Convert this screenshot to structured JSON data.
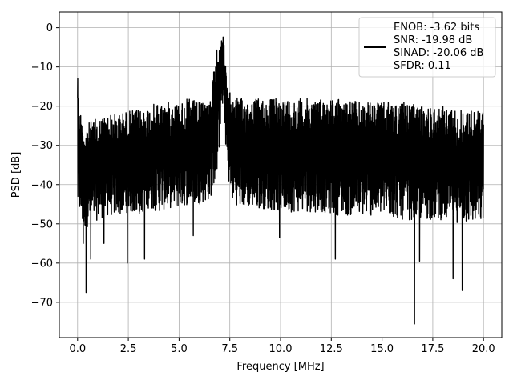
{
  "chart_data": {
    "type": "line",
    "title": "",
    "xlabel": "Frequency [MHz]",
    "ylabel": "PSD [dB]",
    "xlim": [
      -0.9,
      20.9
    ],
    "ylim": [
      -79,
      4
    ],
    "xticks": [
      0.0,
      2.5,
      5.0,
      7.5,
      10.0,
      12.5,
      15.0,
      17.5,
      20.0
    ],
    "xtick_labels": [
      "0.0",
      "2.5",
      "5.0",
      "7.5",
      "10.0",
      "12.5",
      "15.0",
      "17.5",
      "20.0"
    ],
    "yticks": [
      0,
      -10,
      -20,
      -30,
      -40,
      -50,
      -60,
      -70
    ],
    "ytick_labels": [
      "0",
      "−10",
      "−20",
      "−30",
      "−40",
      "−50",
      "−60",
      "−70"
    ],
    "grid": true,
    "legend_position": "top-right",
    "line_color": "#000000",
    "grid_color": "#b0b0b0",
    "series": [
      {
        "name": "ENOB: -3.62 bits\nSNR: -19.98 dB\nSINAD: -20.06 dB\nSFDR: 0.11",
        "legend_lines": [
          "ENOB: -3.62 bits",
          "SNR: -19.98 dB",
          "SINAD: -20.06 dB",
          "SFDR: 0.11"
        ],
        "envelope": {
          "x": [
            0.0,
            0.1,
            0.3,
            0.6,
            1.0,
            1.5,
            2.0,
            2.5,
            3.0,
            3.5,
            4.0,
            4.5,
            5.0,
            5.5,
            6.0,
            6.5,
            6.8,
            7.0,
            7.1,
            7.2,
            7.4,
            7.6,
            8.0,
            9.0,
            10.0,
            11.0,
            12.0,
            13.0,
            14.0,
            15.0,
            16.0,
            17.0,
            18.0,
            19.0,
            20.0
          ],
          "upper": [
            -13,
            -20,
            -25,
            -24,
            -23,
            -22,
            -22,
            -21,
            -21,
            -20,
            -19,
            -19,
            -19,
            -18,
            -19,
            -18,
            -8,
            0,
            0,
            -3,
            -16,
            -17,
            -18,
            -18,
            -18,
            -18,
            -18,
            -18,
            -19,
            -19,
            -19,
            -20,
            -20,
            -21,
            -21
          ],
          "lower": [
            -45,
            -48,
            -52,
            -50,
            -49,
            -48,
            -48,
            -47,
            -48,
            -46,
            -47,
            -46,
            -46,
            -45,
            -45,
            -44,
            -40,
            -30,
            -20,
            -22,
            -38,
            -44,
            -46,
            -46,
            -47,
            -47,
            -47,
            -48,
            -48,
            -48,
            -49,
            -49,
            -49,
            -50,
            -50
          ]
        },
        "deep_dips": [
          {
            "x": 0.28,
            "y": -55
          },
          {
            "x": 0.42,
            "y": -67.5
          },
          {
            "x": 0.65,
            "y": -59
          },
          {
            "x": 1.3,
            "y": -55
          },
          {
            "x": 2.45,
            "y": -60
          },
          {
            "x": 3.3,
            "y": -59
          },
          {
            "x": 5.7,
            "y": -53
          },
          {
            "x": 9.95,
            "y": -53.5
          },
          {
            "x": 12.7,
            "y": -59
          },
          {
            "x": 16.6,
            "y": -75.5
          },
          {
            "x": 16.85,
            "y": -59.5
          },
          {
            "x": 18.5,
            "y": -64
          },
          {
            "x": 18.95,
            "y": -67
          }
        ]
      }
    ]
  }
}
